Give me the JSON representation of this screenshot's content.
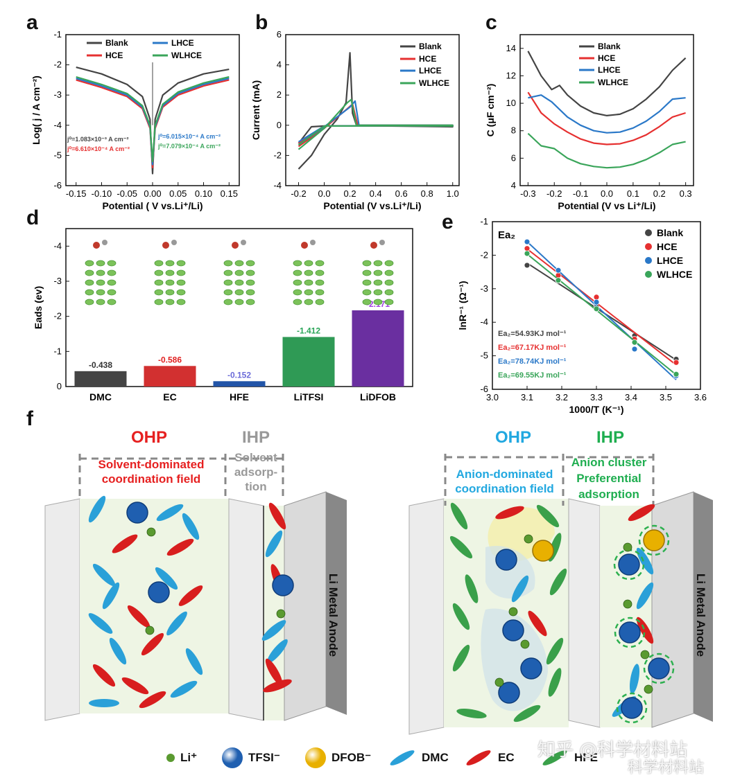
{
  "panels": {
    "a": "a",
    "b": "b",
    "c": "c",
    "d": "d",
    "e": "e",
    "f": "f"
  },
  "chart_data": [
    {
      "panel": "a",
      "type": "line",
      "xlabel": "Potential ( V vs.Li⁺/Li)",
      "ylabel": "Log( j / A cm⁻²)",
      "xlim": [
        -0.17,
        0.17
      ],
      "ylim": [
        -6,
        -1
      ],
      "xticks": [
        "-0.15",
        "-0.10",
        "-0.05",
        "0.00",
        "0.05",
        "0.10",
        "0.15"
      ],
      "yticks": [
        "-1",
        "-2",
        "-3",
        "-4",
        "-5",
        "-6"
      ],
      "series": [
        {
          "name": "Blank",
          "color": "#444444",
          "x": [
            -0.15,
            -0.1,
            -0.05,
            -0.02,
            -0.005,
            0,
            0.005,
            0.02,
            0.05,
            0.1,
            0.15
          ],
          "y": [
            -2.08,
            -2.3,
            -2.65,
            -3.05,
            -3.8,
            -5.6,
            -3.8,
            -3.0,
            -2.6,
            -2.3,
            -2.15
          ]
        },
        {
          "name": "HCE",
          "color": "#e63030",
          "x": [
            -0.15,
            -0.1,
            -0.05,
            -0.02,
            -0.005,
            0,
            0.005,
            0.02,
            0.05,
            0.1,
            0.15
          ],
          "y": [
            -2.5,
            -2.75,
            -3.05,
            -3.45,
            -4.1,
            -5.4,
            -4.1,
            -3.4,
            -3.0,
            -2.7,
            -2.5
          ]
        },
        {
          "name": "LHCE",
          "color": "#2a78c8",
          "x": [
            -0.15,
            -0.1,
            -0.05,
            -0.02,
            -0.005,
            0,
            0.005,
            0.02,
            0.05,
            0.1,
            0.15
          ],
          "y": [
            -2.45,
            -2.7,
            -3.0,
            -3.4,
            -4.05,
            -5.3,
            -4.05,
            -3.35,
            -2.95,
            -2.65,
            -2.45
          ]
        },
        {
          "name": "WLHCE",
          "color": "#3aa55a",
          "x": [
            -0.15,
            -0.1,
            -0.05,
            -0.02,
            -0.005,
            0,
            0.005,
            0.02,
            0.05,
            0.1,
            0.15
          ],
          "y": [
            -2.4,
            -2.65,
            -2.95,
            -3.35,
            -4.0,
            -5.2,
            -4.0,
            -3.3,
            -2.9,
            -2.6,
            -2.4
          ]
        }
      ],
      "annotations": [
        {
          "text": "j⁰=1.083×10⁻³ A cm⁻²",
          "color": "#444444"
        },
        {
          "text": "j⁰=6.610×10⁻⁴ A cm⁻²",
          "color": "#e63030"
        },
        {
          "text": "j⁰=6.015×10⁻⁴ A cm⁻²",
          "color": "#2a78c8"
        },
        {
          "text": "j⁰=7.079×10⁻⁴ A cm⁻²",
          "color": "#3aa55a"
        }
      ]
    },
    {
      "panel": "b",
      "type": "line",
      "xlabel": "Potential (V vs.Li⁺/Li)",
      "ylabel": "Current (mA)",
      "xlim": [
        -0.3,
        1.05
      ],
      "ylim": [
        -4,
        6
      ],
      "xticks": [
        "-0.2",
        "0.0",
        "0.2",
        "0.4",
        "0.6",
        "0.8",
        "1.0"
      ],
      "yticks": [
        "6",
        "4",
        "2",
        "0",
        "-2",
        "-4"
      ],
      "series": [
        {
          "name": "Blank",
          "color": "#444444",
          "x": [
            -0.2,
            -0.1,
            0.0,
            0.1,
            0.17,
            0.2,
            0.22,
            0.25,
            0.5,
            1.0,
            1.0,
            0.5,
            0.1,
            0.0,
            -0.1,
            -0.2
          ],
          "y": [
            -2.9,
            -2.0,
            -0.6,
            0.4,
            1.5,
            4.8,
            0.8,
            0.0,
            0.0,
            0.0,
            -0.1,
            -0.05,
            -0.05,
            -0.05,
            -0.1,
            -1.2
          ]
        },
        {
          "name": "HCE",
          "color": "#e63030",
          "x": [
            -0.2,
            0.0,
            0.18,
            0.22,
            0.26,
            0.5,
            1.0,
            1.0,
            0.5,
            0.0,
            -0.2
          ],
          "y": [
            -1.4,
            -0.2,
            1.1,
            1.4,
            0.0,
            0.0,
            0.0,
            -0.05,
            -0.03,
            -0.05,
            -1.2
          ]
        },
        {
          "name": "LHCE",
          "color": "#2a78c8",
          "x": [
            -0.2,
            0.0,
            0.2,
            0.24,
            0.27,
            0.5,
            1.0,
            1.0,
            0.5,
            0.0,
            -0.2
          ],
          "y": [
            -1.3,
            -0.1,
            1.2,
            1.6,
            0.0,
            0.0,
            0.0,
            -0.05,
            -0.03,
            -0.05,
            -1.1
          ]
        },
        {
          "name": "WLHCE",
          "color": "#3aa55a",
          "x": [
            -0.2,
            0.0,
            0.18,
            0.21,
            0.25,
            0.5,
            1.0,
            1.0,
            0.5,
            0.0,
            -0.2
          ],
          "y": [
            -1.6,
            -0.2,
            1.5,
            1.7,
            0.0,
            0.0,
            0.0,
            -0.05,
            -0.03,
            -0.05,
            -1.3
          ]
        }
      ]
    },
    {
      "panel": "c",
      "type": "line",
      "xlabel": "Potential (V vs Li⁺/Li)",
      "ylabel": "C (μF cm⁻²)",
      "xlim": [
        -0.33,
        0.33
      ],
      "ylim": [
        4,
        15
      ],
      "xticks": [
        "-0.3",
        "-0.2",
        "-0.1",
        "0.0",
        "0.1",
        "0.2",
        "0.3"
      ],
      "yticks": [
        "14",
        "12",
        "10",
        "8",
        "6",
        "4"
      ],
      "series": [
        {
          "name": "Blank",
          "color": "#444444",
          "x": [
            -0.3,
            -0.25,
            -0.21,
            -0.18,
            -0.15,
            -0.1,
            -0.05,
            0.0,
            0.05,
            0.1,
            0.15,
            0.2,
            0.25,
            0.3
          ],
          "y": [
            13.8,
            12.0,
            11.0,
            11.3,
            10.6,
            9.8,
            9.3,
            9.1,
            9.2,
            9.6,
            10.3,
            11.2,
            12.4,
            13.3
          ]
        },
        {
          "name": "HCE",
          "color": "#e63030",
          "x": [
            -0.3,
            -0.25,
            -0.2,
            -0.15,
            -0.1,
            -0.05,
            0.0,
            0.05,
            0.1,
            0.15,
            0.2,
            0.25,
            0.3
          ],
          "y": [
            10.8,
            9.3,
            8.5,
            7.9,
            7.4,
            7.1,
            7.0,
            7.05,
            7.3,
            7.7,
            8.3,
            9.0,
            9.3
          ]
        },
        {
          "name": "LHCE",
          "color": "#2a78c8",
          "x": [
            -0.3,
            -0.25,
            -0.21,
            -0.15,
            -0.1,
            -0.05,
            0.0,
            0.05,
            0.1,
            0.15,
            0.2,
            0.25,
            0.3
          ],
          "y": [
            10.4,
            10.6,
            10.1,
            9.0,
            8.4,
            8.0,
            7.85,
            7.9,
            8.2,
            8.7,
            9.4,
            10.3,
            10.4
          ]
        },
        {
          "name": "WLHCE",
          "color": "#3aa55a",
          "x": [
            -0.3,
            -0.25,
            -0.2,
            -0.15,
            -0.1,
            -0.05,
            0.0,
            0.05,
            0.1,
            0.15,
            0.2,
            0.25,
            0.3
          ],
          "y": [
            7.8,
            6.9,
            6.7,
            6.0,
            5.6,
            5.4,
            5.3,
            5.35,
            5.55,
            5.9,
            6.4,
            7.0,
            7.2
          ]
        }
      ]
    },
    {
      "panel": "d",
      "type": "bar",
      "ylabel": "Eads (ev)",
      "ylim": [
        0,
        -4.5
      ],
      "yticks": [
        "-4",
        "-3",
        "-2",
        "-1",
        "0"
      ],
      "categories": [
        "DMC",
        "EC",
        "HFE",
        "LiTFSI",
        "LiDFOB"
      ],
      "values": [
        -0.438,
        -0.586,
        -0.152,
        -1.412,
        -2.171
      ],
      "value_labels": [
        "-0.438",
        "-0.586",
        "-0.152",
        "-1.412",
        "-2.171"
      ],
      "colors": [
        "#444444",
        "#d23030",
        "#2255a8",
        "#2f9a55",
        "#6a2fa0"
      ],
      "label_colors": [
        "#333333",
        "#e02020",
        "#6a6ad8",
        "#2aa558",
        "#a040e0"
      ]
    },
    {
      "panel": "e",
      "type": "scatter",
      "xlabel": "1000/T (K⁻¹)",
      "ylabel": "lnR⁻¹ (Ω⁻¹)",
      "annotation": "Ea₂",
      "xlim": [
        3.0,
        3.6
      ],
      "ylim": [
        -6,
        -1
      ],
      "xticks": [
        "3.0",
        "3.1",
        "3.2",
        "3.3",
        "3.4",
        "3.5",
        "3.6"
      ],
      "yticks": [
        "-1",
        "-2",
        "-3",
        "-4",
        "-5",
        "-6"
      ],
      "series": [
        {
          "name": "Blank",
          "color": "#444444",
          "x": [
            3.1,
            3.19,
            3.3,
            3.41,
            3.53
          ],
          "y": [
            -2.3,
            -2.75,
            -3.55,
            -4.4,
            -5.1
          ],
          "fit_label": "Ea₂=54.93KJ mol⁻¹"
        },
        {
          "name": "HCE",
          "color": "#e63030",
          "x": [
            3.1,
            3.19,
            3.3,
            3.41,
            3.53
          ],
          "y": [
            -1.8,
            -2.6,
            -3.25,
            -4.5,
            -5.2
          ],
          "fit_label": "Ea₂=67.17KJ mol⁻¹"
        },
        {
          "name": "LHCE",
          "color": "#2a78c8",
          "x": [
            3.1,
            3.19,
            3.3,
            3.41,
            3.53
          ],
          "y": [
            -1.6,
            -2.45,
            -3.4,
            -4.8,
            -5.6
          ],
          "fit_label": "Ea₂=78.74KJ mol⁻¹"
        },
        {
          "name": "WLHCE",
          "color": "#3aa55a",
          "x": [
            3.1,
            3.19,
            3.3,
            3.41,
            3.53
          ],
          "y": [
            -1.95,
            -2.75,
            -3.6,
            -4.6,
            -5.55
          ],
          "fit_label": "Ea₂=69.55KJ mol⁻¹"
        }
      ]
    }
  ],
  "schematic": {
    "left": {
      "ohp_title": "OHP",
      "ohp_desc": "Solvent-dominated coordination field",
      "ihp_title": "IHP",
      "ihp_desc": "Solvent adsorp-tion",
      "anode": "Li Metal Anode"
    },
    "right": {
      "ohp_title": "OHP",
      "ohp_desc": "Anion-dominated coordination field",
      "ihp_title": "IHP",
      "ihp_desc": "Anion cluster Preferential adsorption",
      "anode": "Li Metal Anode"
    },
    "legend": [
      {
        "label": "Li⁺",
        "icon": "li-ion-icon",
        "color": "#5a9a30"
      },
      {
        "label": "TFSI⁻",
        "icon": "tfsi-sphere-icon",
        "color": "#1f5fb0"
      },
      {
        "label": "DFOB⁻",
        "icon": "dfob-sphere-icon",
        "color": "#e8b000"
      },
      {
        "label": "DMC",
        "icon": "dmc-ellipse-icon",
        "color": "#2aa0d8"
      },
      {
        "label": "EC",
        "icon": "ec-ellipse-icon",
        "color": "#d81e1e"
      },
      {
        "label": "HFE",
        "icon": "hfe-ellipse-icon",
        "color": "#3aa04a"
      }
    ],
    "colors": {
      "ohp_left": "#e62020",
      "ihp_left": "#999999",
      "ohp_right": "#22a8e0",
      "ihp_right": "#1fae50"
    }
  },
  "watermark": {
    "line1": "知乎 @科学材料站",
    "line2": "科学材料站"
  }
}
